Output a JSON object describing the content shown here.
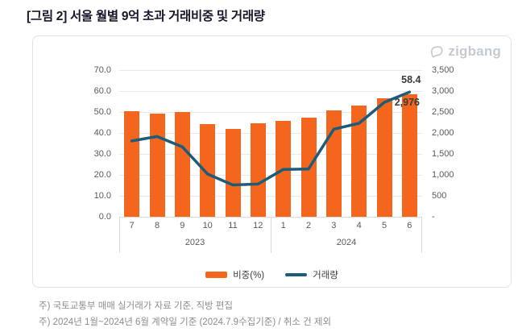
{
  "title": "[그림 2] 서울 월별 9억 초과 거래비중 및 거래량",
  "logo": {
    "text": "zigbang"
  },
  "chart_data": {
    "type": "bar",
    "subtype": "bar-and-line-combo",
    "categories": [
      "7",
      "8",
      "9",
      "10",
      "11",
      "12",
      "1",
      "2",
      "3",
      "4",
      "5",
      "6"
    ],
    "year_groups": [
      {
        "label": "2023",
        "span": 6
      },
      {
        "label": "2024",
        "span": 6
      }
    ],
    "series": [
      {
        "name": "비중(%)",
        "type": "bar",
        "axis": "left",
        "values": [
          50.4,
          49.4,
          50.0,
          44.4,
          42.0,
          44.6,
          45.8,
          47.2,
          50.9,
          53.2,
          56.6,
          58.4
        ]
      },
      {
        "name": "거래량",
        "type": "line",
        "axis": "right",
        "values": [
          1810,
          1915,
          1670,
          1020,
          760,
          780,
          1130,
          1140,
          2090,
          2230,
          2730,
          2976
        ]
      }
    ],
    "left_axis": {
      "ticks": [
        "70.0",
        "60.0",
        "50.0",
        "40.0",
        "30.0",
        "20.0",
        "10.0",
        "0.0"
      ],
      "min": 0,
      "max": 70
    },
    "right_axis": {
      "ticks": [
        "3,500",
        "3,000",
        "2,500",
        "2,000",
        "1,500",
        "1,000",
        "500",
        "-"
      ],
      "min": 0,
      "max": 3500
    },
    "annotations": [
      {
        "text": "58.4",
        "refers_to": "last bar value (2024-06 비중 %)"
      },
      {
        "text": "2,976",
        "refers_to": "last line value (2024-06 거래량)"
      }
    ],
    "legend_position": "bottom",
    "grid": true
  },
  "notes": [
    "주) 국토교통부 매매 실거래가 자료 기준, 직방 편집",
    "주) 2024년 1월~2024년 6월 계약일 기준 (2024.7.9수집기준) / 취소 건 제외"
  ],
  "colors": {
    "bar": "#F4661E",
    "line": "#1C5C78",
    "grid": "#E9E9E9",
    "axis_text": "#595959",
    "annotation": "#3A3A3A",
    "note_text": "#8C8C8C",
    "card_border": "#E2E2E2",
    "logo": "#C5CAD1",
    "title": "#17172B"
  }
}
